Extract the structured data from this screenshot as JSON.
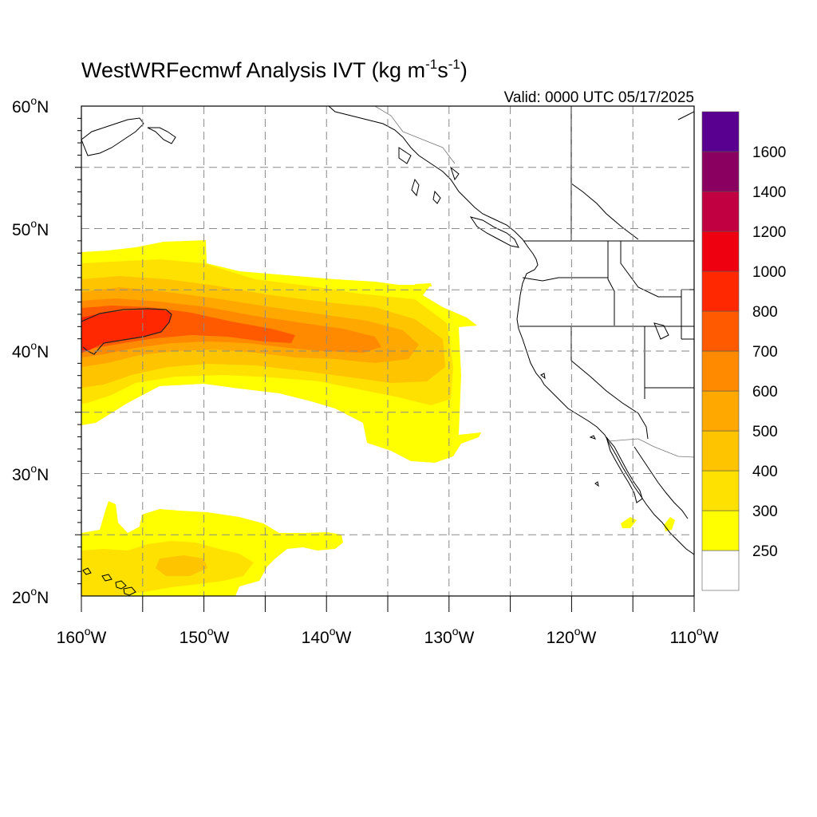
{
  "title": {
    "prefix": "WestWRFecmwf Analysis IVT (kg m",
    "sup1": "-1",
    "mid": "s",
    "sup2": "-1",
    "suffix": ")"
  },
  "valid": "Valid: 0000 UTC 05/17/2025",
  "lat_labels": [
    "60",
    "50",
    "40",
    "30",
    "20"
  ],
  "lat_suffix": "N",
  "lon_labels": [
    "160",
    "150",
    "140",
    "130",
    "120",
    "110"
  ],
  "lon_suffix": "W",
  "degree": "o",
  "colorbar": {
    "labels": [
      "250",
      "300",
      "400",
      "500",
      "600",
      "700",
      "800",
      "1000",
      "1200",
      "1400",
      "1600"
    ],
    "colors": [
      "#ffffff",
      "#ffff00",
      "#ffe100",
      "#ffc400",
      "#ffa800",
      "#ff8a00",
      "#ff5a00",
      "#ff2800",
      "#ee0010",
      "#c00040",
      "#8a0060",
      "#5a0090"
    ]
  },
  "chart_data": {
    "type": "heatmap",
    "variable": "IVT",
    "units": "kg m-1 s-1",
    "extent": {
      "lon_min": -160,
      "lon_max": -110,
      "lat_min": 20,
      "lat_max": 60
    },
    "levels": [
      250,
      300,
      400,
      500,
      600,
      700,
      800,
      1000,
      1200,
      1400,
      1600
    ],
    "features": [
      {
        "name": "atmospheric river core",
        "max_ivt_approx": 1000,
        "lon_range": [
          -160,
          -152
        ],
        "lat_range": [
          40,
          44
        ]
      },
      {
        "name": "plume extent",
        "lon_range": [
          -160,
          -127
        ],
        "lat_range": [
          31,
          49
        ]
      },
      {
        "name": "subtropical moisture",
        "lon_range": [
          -160,
          -138
        ],
        "lat_range": [
          20,
          27
        ]
      }
    ]
  }
}
